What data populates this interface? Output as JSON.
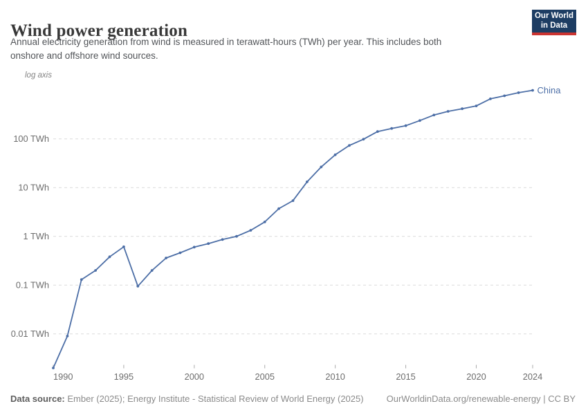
{
  "header": {
    "title": "Wind power generation",
    "subtitle_lines": [
      "Annual electricity generation from wind is measured in terawatt-hours (TWh) per year. This includes both",
      "onshore and offshore wind sources."
    ],
    "logo": {
      "line1": "Our World",
      "line2": "in Data",
      "bg_color": "#1d3d63",
      "bar_color": "#cb3431"
    }
  },
  "chart_data": {
    "type": "line",
    "title": "Wind power generation",
    "axis_note": "log axis",
    "yscale": "log",
    "grid": "dashed horizontal",
    "grid_color": "#dcdcdc",
    "axis_text_color": "#6c6c6c",
    "xlim": [
      1990,
      2024
    ],
    "ylim": [
      0.0015,
      1000
    ],
    "y_ticks": [
      {
        "value": 100,
        "label": "100 TWh"
      },
      {
        "value": 10,
        "label": "10 TWh"
      },
      {
        "value": 1,
        "label": "1 TWh"
      },
      {
        "value": 0.1,
        "label": "0.1 TWh"
      },
      {
        "value": 0.01,
        "label": "0.01 TWh"
      }
    ],
    "x_ticks": [
      {
        "year": 1990,
        "label": "1990",
        "align": "start"
      },
      {
        "year": 1995,
        "label": "1995",
        "align": "middle"
      },
      {
        "year": 2000,
        "label": "2000",
        "align": "middle"
      },
      {
        "year": 2005,
        "label": "2005",
        "align": "middle"
      },
      {
        "year": 2010,
        "label": "2010",
        "align": "middle"
      },
      {
        "year": 2015,
        "label": "2015",
        "align": "middle"
      },
      {
        "year": 2020,
        "label": "2020",
        "align": "middle"
      },
      {
        "year": 2024,
        "label": "2024",
        "align": "middle"
      }
    ],
    "series": [
      {
        "name": "China",
        "color": "#4c6ea6",
        "unit": "TWh",
        "x": [
          1990,
          1991,
          1992,
          1993,
          1994,
          1995,
          1996,
          1997,
          1998,
          1999,
          2000,
          2001,
          2002,
          2003,
          2004,
          2005,
          2006,
          2007,
          2008,
          2009,
          2010,
          2011,
          2012,
          2013,
          2014,
          2015,
          2016,
          2017,
          2018,
          2019,
          2020,
          2021,
          2022,
          2023,
          2024
        ],
        "values": [
          0.002,
          0.009,
          0.13,
          0.2,
          0.38,
          0.61,
          0.095,
          0.2,
          0.36,
          0.46,
          0.6,
          0.71,
          0.86,
          1.0,
          1.33,
          1.97,
          3.7,
          5.4,
          13.1,
          26.5,
          47,
          73,
          98,
          141,
          163,
          186,
          237,
          308,
          366,
          414,
          474,
          660,
          763,
          884,
          986
        ]
      }
    ],
    "legend_position": "end-of-line label"
  },
  "footer": {
    "source_label": "Data source:",
    "source_text": " Ember (2025); Energy Institute - Statistical Review of World Energy (2025)",
    "link_text": "OurWorldinData.org/renewable-energy | CC BY"
  }
}
